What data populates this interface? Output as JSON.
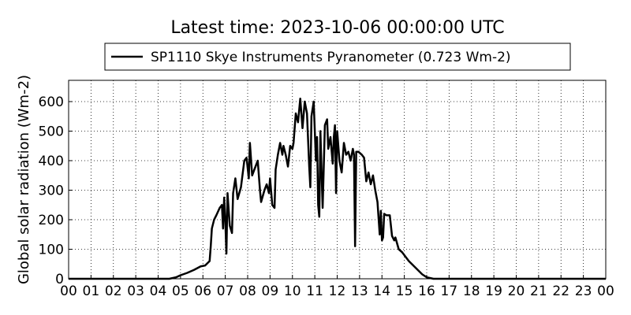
{
  "chart_data": {
    "type": "line",
    "title": "Latest time: 2023-10-06 00:00:00 UTC",
    "y_label": "Global solar radiation (Wm-2)",
    "x": [
      0,
      4.5,
      4.8,
      5.0,
      5.3,
      5.6,
      5.9,
      6.1,
      6.3,
      6.35,
      6.4,
      6.5,
      6.6,
      6.75,
      6.85,
      6.9,
      6.95,
      7.0,
      7.05,
      7.1,
      7.2,
      7.3,
      7.35,
      7.45,
      7.55,
      7.7,
      7.85,
      7.95,
      8.05,
      8.1,
      8.2,
      8.35,
      8.45,
      8.55,
      8.6,
      8.75,
      8.85,
      8.95,
      9.0,
      9.1,
      9.2,
      9.25,
      9.35,
      9.45,
      9.55,
      9.6,
      9.7,
      9.8,
      9.9,
      10.0,
      10.05,
      10.15,
      10.25,
      10.35,
      10.45,
      10.55,
      10.65,
      10.75,
      10.8,
      10.85,
      10.95,
      11.05,
      11.1,
      11.15,
      11.2,
      11.25,
      11.35,
      11.45,
      11.55,
      11.6,
      11.7,
      11.8,
      11.85,
      11.9,
      11.95,
      12.0,
      12.1,
      12.2,
      12.3,
      12.4,
      12.5,
      12.6,
      12.7,
      12.75,
      12.8,
      12.85,
      12.95,
      13.1,
      13.2,
      13.3,
      13.4,
      13.5,
      13.6,
      13.7,
      13.8,
      13.9,
      13.95,
      14.0,
      14.05,
      14.1,
      14.2,
      14.35,
      14.45,
      14.55,
      14.6,
      14.75,
      14.9,
      15.0,
      15.2,
      15.4,
      15.6,
      15.8,
      16.0,
      16.3,
      24
    ],
    "series": [
      {
        "name": "SP1110 Skye Instruments Pyranometer (0.723 Wm-2)",
        "color": "#000000",
        "values": [
          0,
          0,
          5,
          12,
          20,
          30,
          42,
          45,
          60,
          110,
          170,
          200,
          215,
          240,
          250,
          170,
          275,
          200,
          85,
          290,
          180,
          155,
          290,
          340,
          270,
          310,
          400,
          410,
          340,
          460,
          350,
          380,
          400,
          300,
          260,
          300,
          320,
          290,
          340,
          250,
          240,
          370,
          420,
          460,
          420,
          450,
          420,
          380,
          450,
          440,
          460,
          560,
          530,
          610,
          510,
          600,
          560,
          380,
          310,
          550,
          600,
          400,
          480,
          250,
          210,
          500,
          240,
          520,
          540,
          440,
          480,
          390,
          480,
          520,
          290,
          500,
          400,
          360,
          460,
          420,
          430,
          400,
          440,
          420,
          110,
          430,
          430,
          420,
          410,
          330,
          360,
          320,
          350,
          300,
          260,
          150,
          230,
          130,
          140,
          220,
          215,
          215,
          145,
          130,
          140,
          100,
          90,
          80,
          60,
          45,
          30,
          15,
          5,
          0,
          0
        ]
      }
    ],
    "xlim": [
      0,
      24
    ],
    "xticks": [
      {
        "value": 0,
        "label": "00"
      },
      {
        "value": 1,
        "label": "01"
      },
      {
        "value": 2,
        "label": "02"
      },
      {
        "value": 3,
        "label": "03"
      },
      {
        "value": 4,
        "label": "04"
      },
      {
        "value": 5,
        "label": "05"
      },
      {
        "value": 6,
        "label": "06"
      },
      {
        "value": 7,
        "label": "07"
      },
      {
        "value": 8,
        "label": "08"
      },
      {
        "value": 9,
        "label": "09"
      },
      10,
      11,
      12,
      13,
      14,
      15,
      16,
      17,
      18,
      19,
      20,
      21,
      22,
      23,
      {
        "value": 24,
        "label": "00"
      }
    ],
    "ylim": [
      0,
      672
    ],
    "yticks": [
      0,
      100,
      200,
      300,
      400,
      500,
      600
    ],
    "grid": true,
    "legend": "top"
  }
}
